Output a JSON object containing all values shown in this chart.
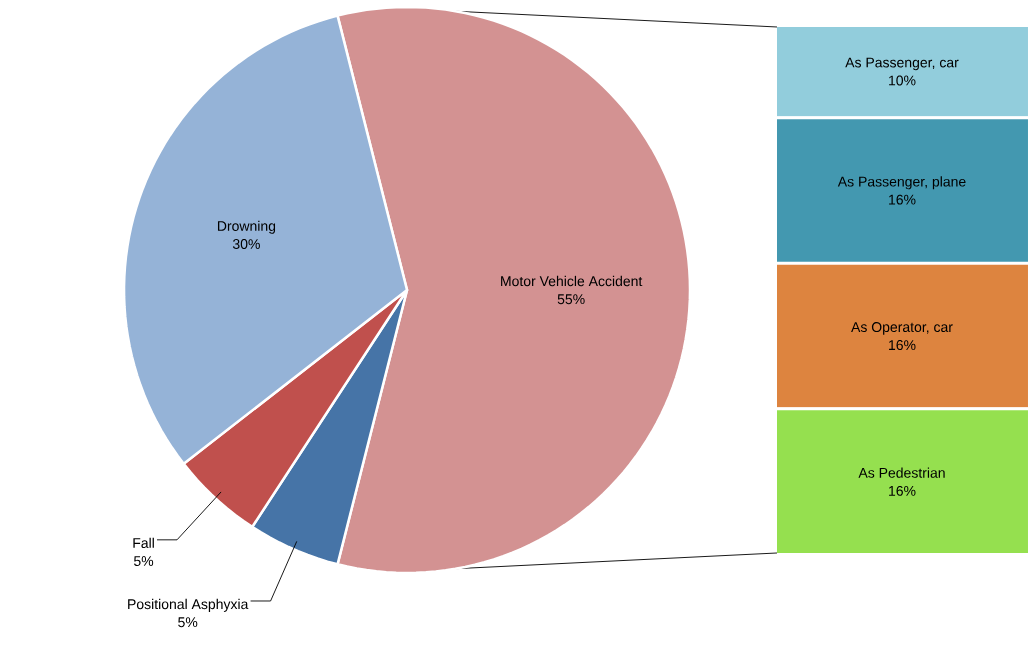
{
  "chart_data": [
    {
      "type": "pie",
      "categories": [
        "Motor Vehicle Accident",
        "Positional Asphyxia",
        "Fall",
        "Drowning"
      ],
      "values": [
        55,
        5,
        5,
        30
      ],
      "value_labels": [
        "55%",
        "5%",
        "5%",
        "30%"
      ],
      "colors": [
        "#d39292",
        "#4674a7",
        "#c0504d",
        "#95b3d7"
      ]
    },
    {
      "type": "other",
      "categories": [
        "As Passenger, car",
        "As Passenger, plane",
        "As Operator, car",
        "As Pedestrian"
      ],
      "values": [
        10,
        16,
        16,
        16
      ],
      "value_labels": [
        "10%",
        "16%",
        "16%",
        "16%"
      ],
      "colors": [
        "#92cddc",
        "#4398b0",
        "#dd843f",
        "#95e04f"
      ]
    }
  ]
}
